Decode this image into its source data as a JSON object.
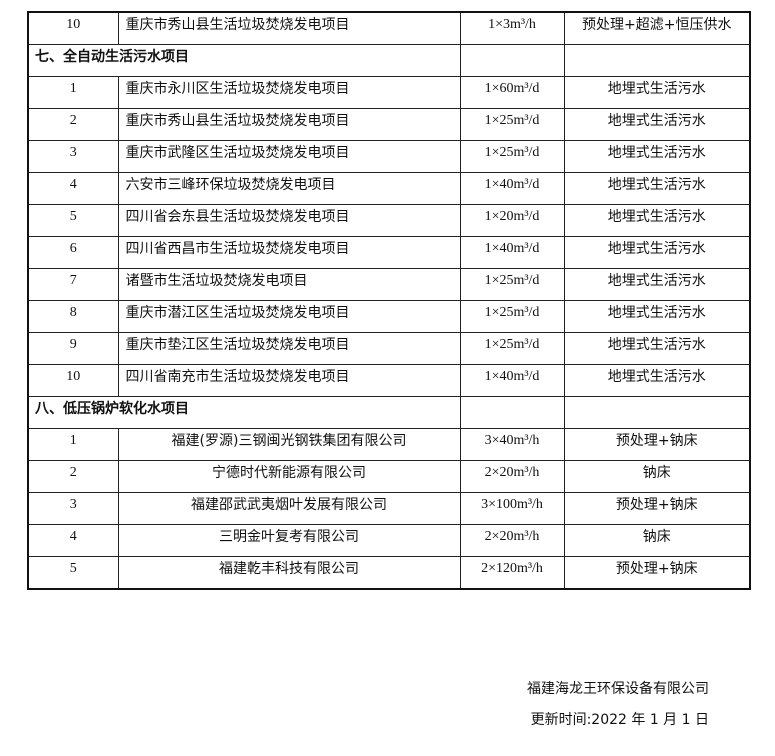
{
  "rows": [
    {
      "type": "item",
      "no": "10",
      "name": "重庆市秀山县生活垃圾焚烧发电项目",
      "capacity": "1×3m³/h",
      "process": "预处理+超滤+恒压供水"
    },
    {
      "type": "section",
      "title": "七、全自动生活污水项目"
    },
    {
      "type": "item",
      "no": "1",
      "name": "重庆市永川区生活垃圾焚烧发电项目",
      "capacity": "1×60m³/d",
      "process": "地埋式生活污水"
    },
    {
      "type": "item",
      "no": "2",
      "name": "重庆市秀山县生活垃圾焚烧发电项目",
      "capacity": "1×25m³/d",
      "process": "地埋式生活污水"
    },
    {
      "type": "item",
      "no": "3",
      "name": "重庆市武隆区生活垃圾焚烧发电项目",
      "capacity": "1×25m³/d",
      "process": "地埋式生活污水"
    },
    {
      "type": "item",
      "no": "4",
      "name": "六安市三峰环保垃圾焚烧发电项目",
      "capacity": "1×40m³/d",
      "process": "地埋式生活污水"
    },
    {
      "type": "item",
      "no": "5",
      "name": "四川省会东县生活垃圾焚烧发电项目",
      "capacity": "1×20m³/d",
      "process": "地埋式生活污水"
    },
    {
      "type": "item",
      "no": "6",
      "name": "四川省西昌市生活垃圾焚烧发电项目",
      "capacity": "1×40m³/d",
      "process": "地埋式生活污水"
    },
    {
      "type": "item",
      "no": "7",
      "name": "诸暨市生活垃圾焚烧发电项目",
      "capacity": "1×25m³/d",
      "process": "地埋式生活污水"
    },
    {
      "type": "item",
      "no": "8",
      "name": "重庆市潜江区生活垃圾焚烧发电项目",
      "capacity": "1×25m³/d",
      "process": "地埋式生活污水"
    },
    {
      "type": "item",
      "no": "9",
      "name": "重庆市垫江区生活垃圾焚烧发电项目",
      "capacity": "1×25m³/d",
      "process": "地埋式生活污水"
    },
    {
      "type": "item",
      "no": "10",
      "name": "四川省南充市生活垃圾焚烧发电项目",
      "capacity": "1×40m³/d",
      "process": "地埋式生活污水"
    },
    {
      "type": "section",
      "title": "八、低压锅炉软化水项目"
    },
    {
      "type": "item",
      "centered": true,
      "no": "1",
      "name": "福建(罗源)三钢闽光钢铁集团有限公司",
      "capacity": "3×40m³/h",
      "process": "预处理+钠床"
    },
    {
      "type": "item",
      "centered": true,
      "no": "2",
      "name": "宁德时代新能源有限公司",
      "capacity": "2×20m³/h",
      "process": "钠床"
    },
    {
      "type": "item",
      "centered": true,
      "no": "3",
      "name": "福建邵武武夷烟叶发展有限公司",
      "capacity": "3×100m³/h",
      "process": "预处理+钠床"
    },
    {
      "type": "item",
      "centered": true,
      "no": "4",
      "name": "三明金叶复考有限公司",
      "capacity": "2×20m³/h",
      "process": "钠床"
    },
    {
      "type": "item",
      "centered": true,
      "no": "5",
      "name": "福建乾丰科技有限公司",
      "capacity": "2×120m³/h",
      "process": "预处理+钠床"
    }
  ],
  "footer": {
    "company": "福建海龙王环保设备有限公司",
    "updated": "更新时间:2022 年 1 月 1 日"
  }
}
